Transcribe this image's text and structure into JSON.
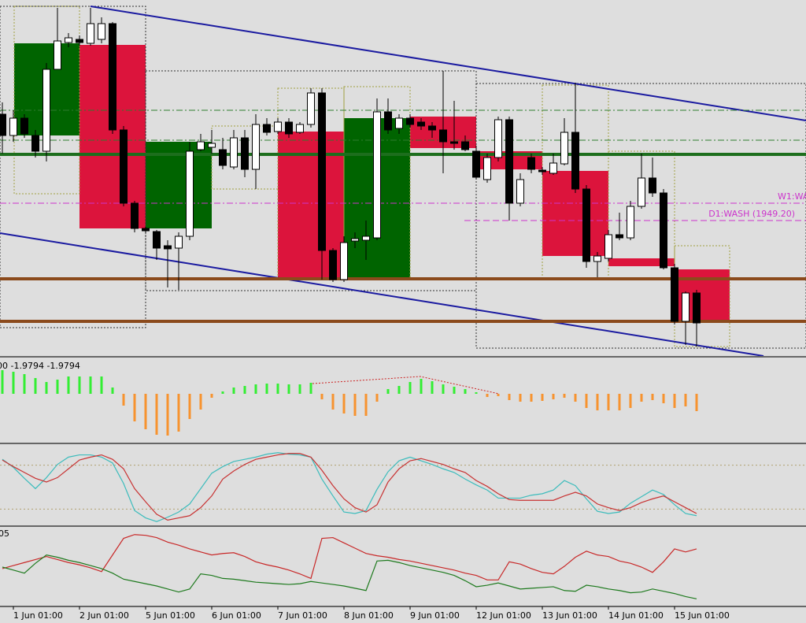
{
  "chart_data": [
    {
      "type": "candlestick",
      "categories": [
        null,
        "1 Jun 01:00",
        null,
        null,
        null,
        null,
        null,
        "2 Jun 01:00",
        null,
        null,
        null,
        null,
        null,
        "5 Jun 01:00",
        null,
        null,
        null,
        null,
        null,
        "6 Jun 01:00",
        null,
        null,
        null,
        null,
        null,
        "7 Jun 01:00",
        null,
        null,
        null,
        null,
        null,
        "8 Jun 01:00",
        null,
        null,
        null,
        null,
        null,
        "9 Jun 01:00",
        null,
        null,
        null,
        null,
        null,
        "12 Jun 01:00",
        null,
        null,
        null,
        null,
        null,
        "13 Jun 01:00",
        null,
        null,
        null,
        null,
        null,
        "14 Jun 01:00",
        null,
        null,
        null,
        null,
        null,
        "15 Jun 01:00",
        null,
        null
      ],
      "open": [
        1962.7,
        1960.0,
        1962.2,
        1960.0,
        1958.0,
        1968.4,
        1971.8,
        1972.2,
        1971.7,
        1972.2,
        1974.2,
        1960.7,
        1951.4,
        1948.2,
        1947.8,
        1946.0,
        1945.7,
        1947.2,
        1958.2,
        1958.5,
        1958.2,
        1956.0,
        1959.7,
        1955.7,
        1961.4,
        1960.5,
        1961.7,
        1960.4,
        1961.4,
        1965.4,
        1945.4,
        1941.7,
        1946.6,
        1946.7,
        1947.0,
        1963.0,
        1960.9,
        1962.2,
        1961.7,
        1961.2,
        1960.7,
        1959.2,
        1959.2,
        1958.0,
        1954.4,
        1957.2,
        1962.0,
        1951.4,
        1957.2,
        1955.6,
        1955.2,
        1956.4,
        1960.4,
        1953.2,
        1944.0,
        1944.4,
        1947.4,
        1947.0,
        1951.0,
        1954.6,
        1952.7,
        1943.2,
        1936.4,
        1940.0
      ],
      "high": [
        1964.2,
        1963.2,
        1962.7,
        1960.7,
        1969.2,
        1976.2,
        1973.0,
        1972.7,
        1976.2,
        1975.0,
        1974.4,
        1961.2,
        1951.7,
        1948.4,
        1948.0,
        1946.7,
        1947.7,
        1959.2,
        1960.2,
        1960.7,
        1959.7,
        1960.7,
        1960.7,
        1962.7,
        1962.2,
        1962.2,
        1962.2,
        1961.7,
        1966.0,
        1966.0,
        1945.7,
        1947.2,
        1947.7,
        1949.2,
        1964.7,
        1964.7,
        1962.7,
        1962.7,
        1962.2,
        1961.7,
        1968.2,
        1964.4,
        1960.0,
        1958.7,
        1957.7,
        1962.4,
        1962.4,
        1955.2,
        1957.7,
        1956.0,
        1957.7,
        1962.2,
        1966.7,
        1953.7,
        1945.2,
        1948.0,
        1950.2,
        1951.7,
        1957.7,
        1957.2,
        1953.2,
        1943.7,
        1940.2,
        1940.4
      ],
      "low": [
        1957.7,
        1959.2,
        1959.7,
        1957.2,
        1956.7,
        1968.4,
        1971.2,
        1971.4,
        1971.4,
        1971.7,
        1960.2,
        1951.0,
        1947.7,
        1947.6,
        1944.2,
        1940.7,
        1940.4,
        1946.7,
        1958.0,
        1957.7,
        1955.7,
        1955.7,
        1954.7,
        1953.2,
        1960.0,
        1960.2,
        1959.7,
        1960.2,
        1961.0,
        1941.7,
        1941.4,
        1941.4,
        1945.7,
        1944.2,
        1946.7,
        1960.2,
        1960.2,
        1961.0,
        1960.7,
        1959.7,
        1955.2,
        1958.2,
        1958.0,
        1954.4,
        1954.0,
        1956.7,
        1949.2,
        1951.0,
        1955.2,
        1955.0,
        1955.0,
        1956.2,
        1952.7,
        1943.2,
        1942.0,
        1944.0,
        1946.7,
        1946.7,
        1950.7,
        1952.2,
        1943.0,
        1936.0,
        1933.4,
        1933.2
      ],
      "close": [
        1960.0,
        1962.2,
        1960.2,
        1958.0,
        1968.4,
        1972.0,
        1972.4,
        1971.8,
        1974.2,
        1974.2,
        1960.7,
        1951.4,
        1948.2,
        1947.9,
        1945.7,
        1945.6,
        1947.2,
        1958.0,
        1959.2,
        1959.0,
        1956.2,
        1959.7,
        1955.7,
        1961.4,
        1960.4,
        1961.7,
        1960.2,
        1961.4,
        1965.4,
        1945.4,
        1941.7,
        1946.4,
        1946.9,
        1947.2,
        1963.0,
        1960.7,
        1962.2,
        1961.4,
        1961.2,
        1960.7,
        1959.2,
        1959.0,
        1958.2,
        1954.7,
        1957.2,
        1962.0,
        1951.4,
        1954.4,
        1955.7,
        1955.4,
        1956.5,
        1960.4,
        1953.2,
        1944.0,
        1944.7,
        1947.4,
        1947.0,
        1951.0,
        1954.6,
        1952.7,
        1943.2,
        1936.4,
        1940.0,
        1936.2
      ],
      "up_color": "#ffffff",
      "down_color": "#000000",
      "ylim": [
        1932.2,
        1977.2
      ],
      "levels": [
        {
          "value": 1963.2,
          "color": "#2e7d2e",
          "style": "dashdot"
        },
        {
          "value": 1959.4,
          "color": "#2e7d2e",
          "style": "dashdot"
        },
        {
          "value": 1957.6,
          "color": "#1d6e1d",
          "style": "solid"
        },
        {
          "value": 1951.4,
          "label": "W1:WA",
          "color": "#cc33cc",
          "style": "dashdot"
        },
        {
          "value": 1949.2,
          "label": "D1:WASH (1949.20)",
          "color": "#cc33cc",
          "style": "dash"
        },
        {
          "value": 1941.8,
          "color": "#8b4a1c",
          "style": "solid"
        },
        {
          "value": 1936.4,
          "color": "#8b4a1c",
          "style": "solid"
        }
      ]
    },
    {
      "type": "bar",
      "label": "00 -1.9794 -1.9794",
      "values": [
        1.5,
        1.4,
        1.25,
        1.0,
        0.75,
        0.9,
        1.1,
        1.1,
        1.1,
        1.1,
        0.4,
        -0.75,
        -1.75,
        -2.25,
        -2.6,
        -2.65,
        -2.4,
        -1.6,
        -1.0,
        -0.25,
        0.15,
        0.4,
        0.5,
        0.6,
        0.65,
        0.65,
        0.6,
        0.6,
        0.7,
        -0.35,
        -1.0,
        -1.25,
        -1.4,
        -1.4,
        -0.5,
        0.3,
        0.5,
        0.75,
        0.95,
        0.8,
        0.6,
        0.45,
        0.3,
        0.1,
        -0.2,
        -0.15,
        -0.4,
        -0.5,
        -0.5,
        -0.45,
        -0.35,
        -0.25,
        -0.5,
        -0.9,
        -1.05,
        -1.05,
        -1.05,
        -0.9,
        -0.5,
        -0.4,
        -0.6,
        -0.9,
        -0.8,
        -1.1
      ],
      "up_color": "#33ee33",
      "down_color": "#f7932f",
      "ylim": [
        -3,
        2.25
      ]
    },
    {
      "type": "line",
      "ylim": [
        0,
        100
      ],
      "levels": [
        80,
        20
      ],
      "series": [
        {
          "color": "#3cbcbc",
          "values": [
            88,
            77,
            62,
            48,
            63,
            81,
            91,
            94,
            94,
            91,
            83,
            55,
            18,
            8,
            3,
            9,
            16,
            27,
            48,
            69,
            78,
            85,
            88,
            91,
            95,
            97,
            95,
            94,
            91,
            61,
            38,
            16,
            14,
            18,
            47,
            71,
            86,
            91,
            86,
            81,
            75,
            70,
            61,
            53,
            46,
            35,
            35,
            35,
            39,
            41,
            46,
            59,
            52,
            34,
            17,
            14,
            16,
            28,
            37,
            46,
            40,
            26,
            14,
            11
          ]
        },
        {
          "color": "#c83232",
          "values": [
            87,
            78,
            70,
            62,
            57,
            63,
            75,
            87,
            91,
            94,
            88,
            75,
            48,
            30,
            13,
            5,
            8,
            11,
            22,
            38,
            61,
            72,
            81,
            88,
            91,
            94,
            96,
            96,
            91,
            73,
            52,
            34,
            22,
            16,
            26,
            57,
            75,
            86,
            89,
            85,
            81,
            75,
            70,
            59,
            51,
            41,
            33,
            32,
            32,
            32,
            32,
            38,
            43,
            38,
            27,
            22,
            18,
            22,
            29,
            34,
            38,
            30,
            22,
            14
          ]
        }
      ]
    },
    {
      "type": "line",
      "label": "05",
      "ylim": [
        0,
        100
      ],
      "series": [
        {
          "color": "#c82828",
          "values": [
            48,
            52,
            56,
            60,
            64,
            60,
            56,
            53,
            49,
            44,
            66,
            88,
            93,
            92,
            89,
            83,
            79,
            74,
            70,
            66,
            68,
            69,
            64,
            57,
            53,
            50,
            46,
            41,
            35,
            88,
            89,
            82,
            75,
            68,
            65,
            63,
            60,
            58,
            55,
            52,
            49,
            46,
            42,
            39,
            33,
            33,
            57,
            54,
            48,
            43,
            41,
            51,
            63,
            71,
            66,
            64,
            58,
            55,
            50,
            43,
            57,
            74,
            70,
            74
          ]
        },
        {
          "color": "#1e7a1e",
          "values": [
            50,
            46,
            42,
            55,
            66,
            63,
            59,
            56,
            52,
            48,
            42,
            34,
            31,
            28,
            25,
            21,
            17,
            21,
            41,
            39,
            35,
            34,
            32,
            30,
            29,
            28,
            27,
            28,
            31,
            29,
            27,
            25,
            22,
            19,
            58,
            59,
            56,
            52,
            49,
            46,
            43,
            39,
            32,
            24,
            26,
            29,
            25,
            21,
            22,
            23,
            24,
            19,
            18,
            26,
            24,
            21,
            19,
            16,
            17,
            21,
            18,
            15,
            11,
            8
          ]
        }
      ]
    }
  ]
}
